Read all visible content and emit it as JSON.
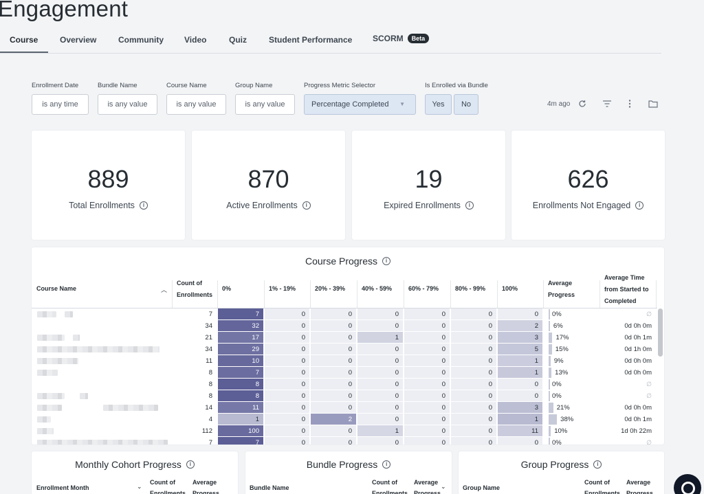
{
  "page": {
    "title": "Engagement"
  },
  "tabs": [
    {
      "label": "Course",
      "active": true
    },
    {
      "label": "Overview"
    },
    {
      "label": "Community"
    },
    {
      "label": "Video"
    },
    {
      "label": "Quiz"
    },
    {
      "label": "Student Performance"
    },
    {
      "label": "SCORM",
      "badge": "Beta"
    }
  ],
  "filters": {
    "enrollment_date": {
      "label": "Enrollment Date",
      "value": "is any time"
    },
    "bundle_name": {
      "label": "Bundle Name",
      "value": "is any value"
    },
    "course_name": {
      "label": "Course Name",
      "value": "is any value"
    },
    "group_name": {
      "label": "Group Name",
      "value": "is any value"
    },
    "progress_metric": {
      "label": "Progress Metric Selector",
      "value": "Percentage Completed"
    },
    "enrolled_via_bundle": {
      "label": "Is Enrolled via Bundle",
      "yes": "Yes",
      "no": "No"
    }
  },
  "toolbar": {
    "updated": "4m ago"
  },
  "cards": [
    {
      "value": "889",
      "label": "Total Enrollments"
    },
    {
      "value": "870",
      "label": "Active Enrollments"
    },
    {
      "value": "19",
      "label": "Expired Enrollments"
    },
    {
      "value": "626",
      "label": "Enrollments Not Engaged"
    }
  ],
  "course_progress": {
    "title": "Course Progress",
    "headers": {
      "course_name": "Course Name",
      "count": "Count of Enrollments",
      "p0": "0%",
      "p1": "1% - 19%",
      "p2": "20% - 39%",
      "p3": "40% - 59%",
      "p4": "60% - 79%",
      "p5": "80% - 99%",
      "p6": "100%",
      "avg": "Average Progress",
      "time": "Average Time from Started to Completed"
    },
    "rows": [
      {
        "count": "7",
        "b": [
          "7",
          "0",
          "0",
          "0",
          "0",
          "0",
          "0"
        ],
        "avg": "0%",
        "time": "∅"
      },
      {
        "count": "34",
        "b": [
          "32",
          "0",
          "0",
          "0",
          "0",
          "0",
          "2"
        ],
        "avg": "6%",
        "time": "0d 0h 0m"
      },
      {
        "count": "21",
        "b": [
          "17",
          "0",
          "0",
          "1",
          "0",
          "0",
          "3"
        ],
        "avg": "17%",
        "time": "0d 0h 1m"
      },
      {
        "count": "34",
        "b": [
          "29",
          "0",
          "0",
          "0",
          "0",
          "0",
          "5"
        ],
        "avg": "15%",
        "time": "0d 1h 0m"
      },
      {
        "count": "11",
        "b": [
          "10",
          "0",
          "0",
          "0",
          "0",
          "0",
          "1"
        ],
        "avg": "9%",
        "time": "0d 0h 0m"
      },
      {
        "count": "8",
        "b": [
          "7",
          "0",
          "0",
          "0",
          "0",
          "0",
          "1"
        ],
        "avg": "13%",
        "time": "0d 0h 0m"
      },
      {
        "count": "8",
        "b": [
          "8",
          "0",
          "0",
          "0",
          "0",
          "0",
          "0"
        ],
        "avg": "0%",
        "time": "∅"
      },
      {
        "count": "8",
        "b": [
          "8",
          "0",
          "0",
          "0",
          "0",
          "0",
          "0"
        ],
        "avg": "0%",
        "time": "∅"
      },
      {
        "count": "14",
        "b": [
          "11",
          "0",
          "0",
          "0",
          "0",
          "0",
          "3"
        ],
        "avg": "21%",
        "time": "0d 0h 0m"
      },
      {
        "count": "4",
        "b": [
          "1",
          "0",
          "2",
          "0",
          "0",
          "0",
          "1"
        ],
        "avg": "38%",
        "time": "0d 0h 1m"
      },
      {
        "count": "112",
        "b": [
          "100",
          "0",
          "0",
          "1",
          "0",
          "0",
          "11"
        ],
        "avg": "10%",
        "time": "1d 0h 22m"
      },
      {
        "count": "7",
        "b": [
          "7",
          "0",
          "0",
          "0",
          "0",
          "0",
          "0"
        ],
        "avg": "0%",
        "time": "∅"
      }
    ]
  },
  "monthly_cohort": {
    "title": "Monthly Cohort Progress",
    "headers": {
      "month": "Enrollment Month",
      "count": "Count of Enrollments",
      "avg": "Average Progress"
    }
  },
  "bundle_progress": {
    "title": "Bundle Progress",
    "headers": {
      "name": "Bundle Name",
      "count": "Count of Enrollments",
      "avg": "Average Progress"
    }
  },
  "group_progress": {
    "title": "Group Progress",
    "headers": {
      "name": "Group Name",
      "count": "Count of Enrollments",
      "avg": "Average Progress"
    }
  }
}
